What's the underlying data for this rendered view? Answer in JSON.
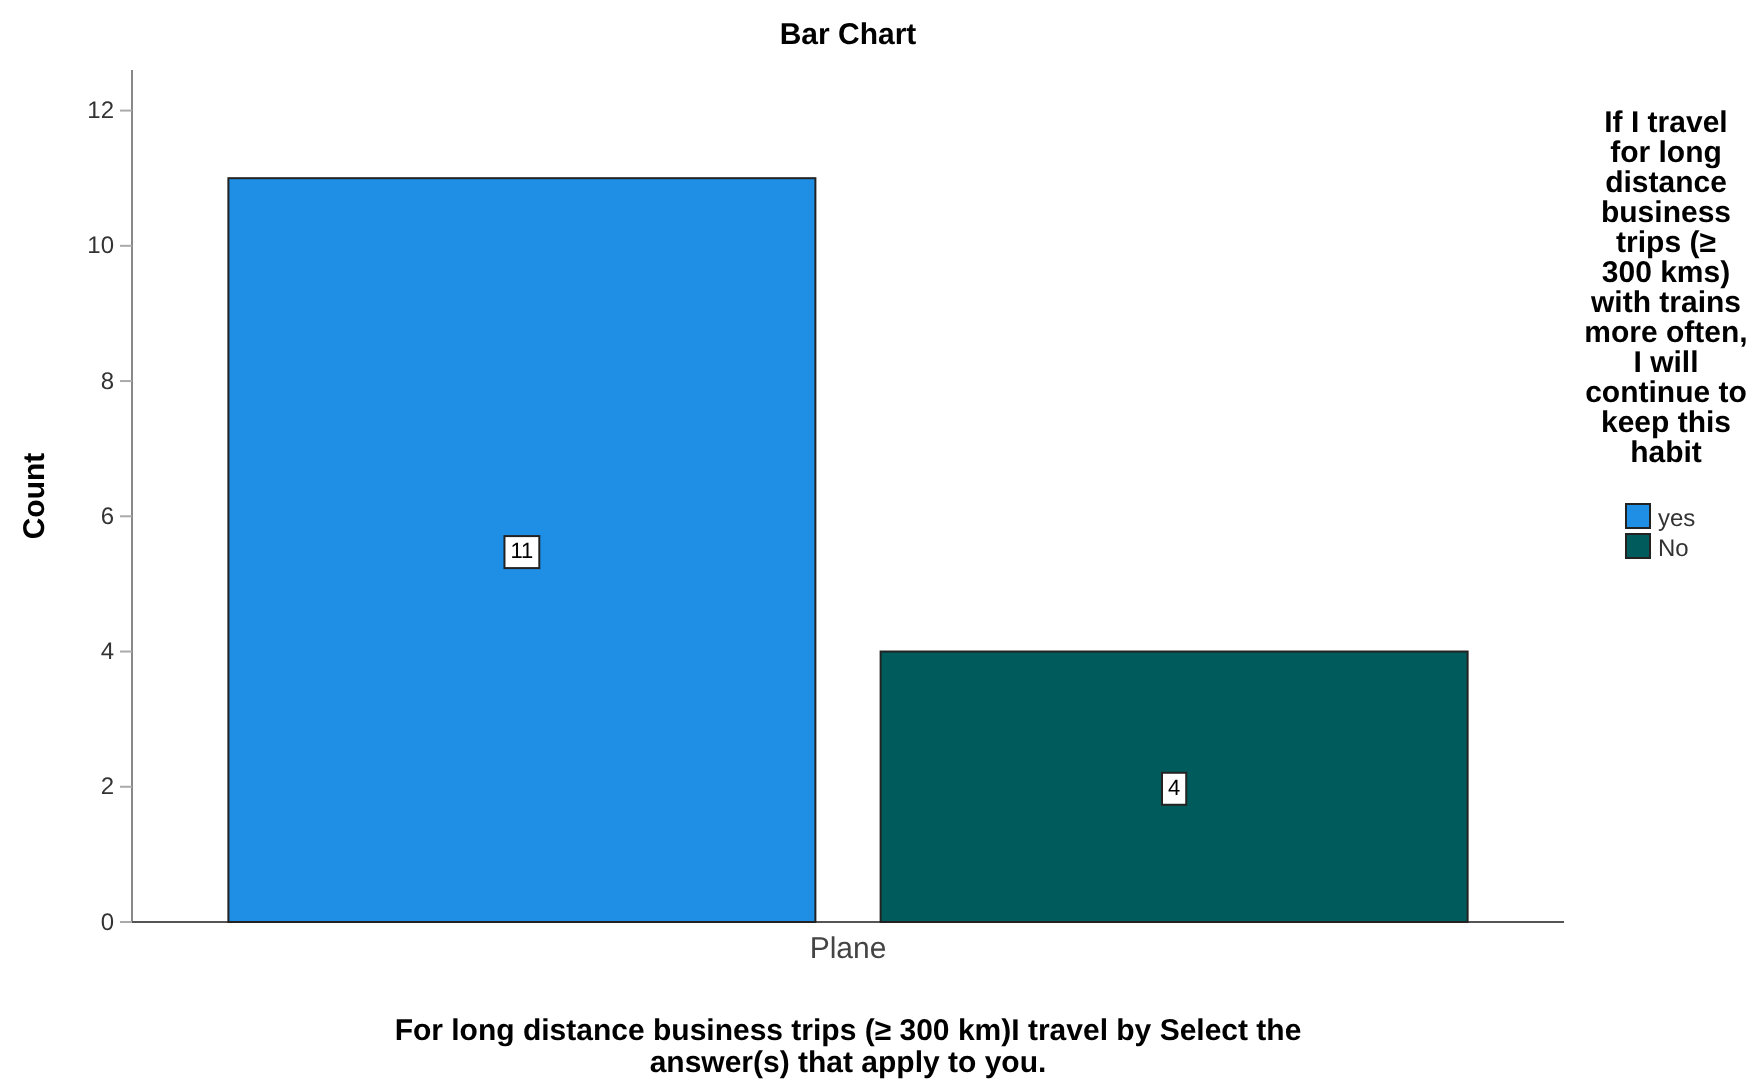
{
  "chart_data": {
    "type": "bar",
    "title": "Bar Chart",
    "xlabel": "For long distance business trips (≥ 300 km)I travel by Select the answer(s) that apply to you.",
    "ylabel": "Count",
    "legend_title": "If I travel for long distance business trips (≥ 300 kms) with trains more often, I will continue to keep this habit",
    "categories": [
      "Plane"
    ],
    "series": [
      {
        "name": "yes",
        "color": "#1f8fe6",
        "values": [
          11
        ]
      },
      {
        "name": "No",
        "color": "#005c5c",
        "values": [
          4
        ]
      }
    ],
    "ylim": [
      0,
      12.6
    ],
    "yticks": [
      0,
      2,
      4,
      6,
      8,
      10,
      12
    ],
    "grid": false,
    "legend": "right",
    "data_labels": true
  }
}
